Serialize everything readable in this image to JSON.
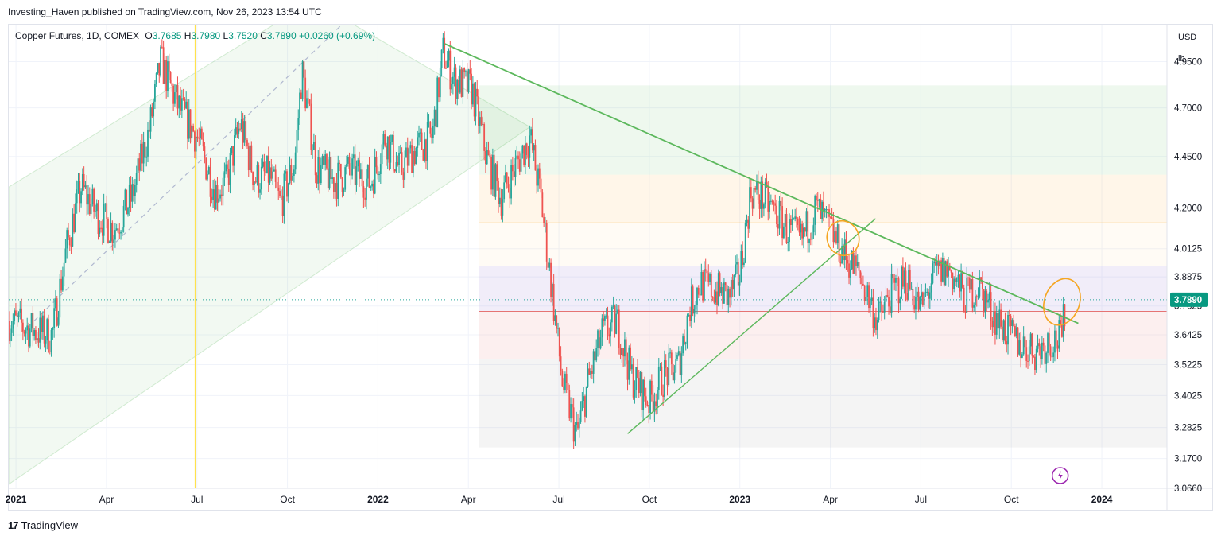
{
  "publisher": "Investing_Haven published on TradingView.com, Nov 26, 2023 13:54 UTC",
  "legend": {
    "symbol": "Copper Futures, 1D, COMEX",
    "o_label": "O",
    "o": "3.7685",
    "h_label": "H",
    "h": "3.7980",
    "l_label": "L",
    "l": "3.7520",
    "c_label": "C",
    "c": "3.7890",
    "change": "+0.0260 (+0.69%)"
  },
  "axis_units": {
    "currency": "USD",
    "unit": "lb"
  },
  "last_price_label": "3.7890",
  "footer": {
    "brand": "TradingView",
    "logo_icon": "tradingview-logo-icon"
  },
  "colors": {
    "up": "#26a69a",
    "down": "#ef5350",
    "trend": "#5cb85c",
    "orange": "#f5a623",
    "red_line": "#b22222",
    "purple_line": "#7b3fa0",
    "yellow_line": "#ffe24d",
    "price_label_bg": "#089981",
    "flash_icon": "#9c27b0"
  },
  "chart_data": {
    "type": "candlestick",
    "title": "Copper Futures, 1D, COMEX",
    "ylim": [
      3.066,
      5.16
    ],
    "y_scale": "log",
    "y_ticks": [
      "4.9500",
      "4.7000",
      "4.4500",
      "4.2000",
      "4.0125",
      "3.8875",
      "3.7625",
      "3.6425",
      "3.5225",
      "3.4025",
      "3.2825",
      "3.1700",
      "3.0660"
    ],
    "x_ticks": [
      "2021",
      "Apr",
      "Jul",
      "Oct",
      "2022",
      "Apr",
      "Jul",
      "Oct",
      "2023",
      "Apr",
      "Jul",
      "Oct",
      "2024"
    ],
    "x_tick_dates": [
      2021.0,
      2021.25,
      2021.5,
      2021.75,
      2022.0,
      2022.25,
      2022.5,
      2022.75,
      2023.0,
      2023.25,
      2023.5,
      2023.75,
      2024.0
    ],
    "x_range": [
      2020.98,
      2024.18
    ],
    "price_path": [
      [
        2020.98,
        3.7
      ],
      [
        2021.05,
        3.66
      ],
      [
        2021.1,
        3.64
      ],
      [
        2021.14,
        4.02
      ],
      [
        2021.18,
        4.3
      ],
      [
        2021.22,
        4.18
      ],
      [
        2021.27,
        4.1
      ],
      [
        2021.32,
        4.25
      ],
      [
        2021.37,
        4.6
      ],
      [
        2021.4,
        4.95
      ],
      [
        2021.45,
        4.7
      ],
      [
        2021.5,
        4.55
      ],
      [
        2021.55,
        4.28
      ],
      [
        2021.58,
        4.32
      ],
      [
        2021.62,
        4.62
      ],
      [
        2021.66,
        4.34
      ],
      [
        2021.7,
        4.36
      ],
      [
        2021.73,
        4.22
      ],
      [
        2021.77,
        4.42
      ],
      [
        2021.79,
        4.9
      ],
      [
        2021.83,
        4.4
      ],
      [
        2021.88,
        4.33
      ],
      [
        2021.92,
        4.38
      ],
      [
        2021.98,
        4.32
      ],
      [
        2022.02,
        4.55
      ],
      [
        2022.06,
        4.38
      ],
      [
        2022.1,
        4.48
      ],
      [
        2022.15,
        4.55
      ],
      [
        2022.18,
        5.0
      ],
      [
        2022.21,
        4.85
      ],
      [
        2022.26,
        4.8
      ],
      [
        2022.3,
        4.45
      ],
      [
        2022.34,
        4.25
      ],
      [
        2022.38,
        4.4
      ],
      [
        2022.42,
        4.55
      ],
      [
        2022.45,
        4.25
      ],
      [
        2022.48,
        3.84
      ],
      [
        2022.51,
        3.45
      ],
      [
        2022.55,
        3.25
      ],
      [
        2022.58,
        3.45
      ],
      [
        2022.62,
        3.65
      ],
      [
        2022.66,
        3.7
      ],
      [
        2022.7,
        3.48
      ],
      [
        2022.75,
        3.38
      ],
      [
        2022.79,
        3.48
      ],
      [
        2022.83,
        3.52
      ],
      [
        2022.86,
        3.75
      ],
      [
        2022.89,
        3.86
      ],
      [
        2022.93,
        3.83
      ],
      [
        2022.97,
        3.8
      ],
      [
        2023.0,
        3.9
      ],
      [
        2023.03,
        4.28
      ],
      [
        2023.06,
        4.25
      ],
      [
        2023.1,
        4.18
      ],
      [
        2023.13,
        4.1
      ],
      [
        2023.17,
        4.05
      ],
      [
        2023.21,
        4.2
      ],
      [
        2023.25,
        4.1
      ],
      [
        2023.29,
        3.98
      ],
      [
        2023.33,
        3.9
      ],
      [
        2023.38,
        3.7
      ],
      [
        2023.42,
        3.82
      ],
      [
        2023.46,
        3.88
      ],
      [
        2023.5,
        3.75
      ],
      [
        2023.54,
        3.9
      ],
      [
        2023.58,
        3.92
      ],
      [
        2023.62,
        3.8
      ],
      [
        2023.66,
        3.85
      ],
      [
        2023.7,
        3.73
      ],
      [
        2023.74,
        3.65
      ],
      [
        2023.78,
        3.6
      ],
      [
        2023.82,
        3.58
      ],
      [
        2023.86,
        3.62
      ],
      [
        2023.89,
        3.63
      ],
      [
        2023.9,
        3.789
      ]
    ],
    "levels": [
      4.2,
      4.13,
      3.935,
      3.74
    ],
    "zone_start": 2022.28,
    "last_close": 3.789
  }
}
